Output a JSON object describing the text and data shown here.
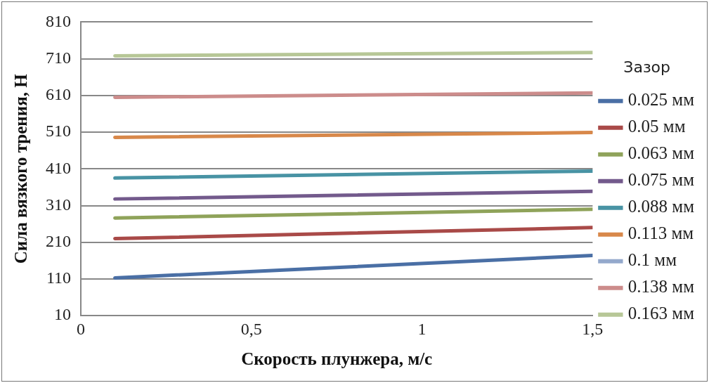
{
  "chart_data": {
    "type": "line",
    "xlabel": "Скорость плунжера, м/с",
    "ylabel": "Сила вязкого трения, Н",
    "legend_title": "Зазор",
    "x": [
      0.1,
      1.5
    ],
    "series": [
      {
        "name": "0.025 мм",
        "color": "#4a6fa5",
        "values": [
          113,
          174
        ]
      },
      {
        "name": "0.05 мм",
        "color": "#a94a48",
        "values": [
          220,
          250
        ]
      },
      {
        "name": "0.063 мм",
        "color": "#8fa35a",
        "values": [
          276,
          300
        ]
      },
      {
        "name": "0.075 мм",
        "color": "#735a8c",
        "values": [
          328,
          349
        ]
      },
      {
        "name": "0.088 мм",
        "color": "#4893a4",
        "values": [
          385,
          404
        ]
      },
      {
        "name": "0.113 мм",
        "color": "#d8884a",
        "values": [
          496,
          509
        ]
      },
      {
        "name": "0.1 мм",
        "color": "#94a9cc",
        "values": [
          null,
          null
        ]
      },
      {
        "name": "0.138 мм",
        "color": "#cc8c8b",
        "values": [
          605,
          617
        ]
      },
      {
        "name": "0.163 мм",
        "color": "#b7c797",
        "values": [
          718,
          727
        ]
      }
    ],
    "xlim": [
      0,
      1.5
    ],
    "xticks": [
      0,
      {
        "value": 0.5,
        "label": "0,5"
      },
      1,
      {
        "value": 1.5,
        "label": "1,5"
      }
    ],
    "ylim": [
      10,
      810
    ],
    "yticks": [
      10,
      110,
      210,
      310,
      410,
      510,
      610,
      710,
      810
    ],
    "grid": "y",
    "legend": "right",
    "marker": "none",
    "line_style": "solid"
  }
}
